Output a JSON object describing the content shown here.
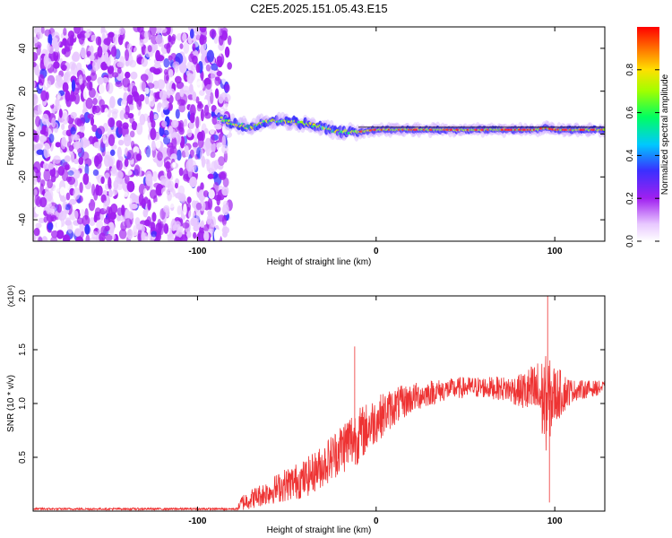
{
  "chart_data": [
    {
      "type": "heatmap",
      "title": "C2E5.2025.151.05.43.E15",
      "xlabel": "Height of straight line (km)",
      "ylabel": "Frequency (Hz)",
      "xlim": [
        -192,
        128
      ],
      "ylim": [
        -50,
        50
      ],
      "xticks": [
        -100,
        0,
        100
      ],
      "yticks": [
        -40,
        -20,
        0,
        20,
        40
      ],
      "colorbar": {
        "label": "Normalized spectral amplitude",
        "range": [
          0,
          1
        ],
        "ticks": [
          "0.0",
          "0.2",
          "0.4",
          "0.6",
          "0.8"
        ],
        "colormap": [
          "#ffffff",
          "#a020f0",
          "#3a30ff",
          "#00c8ff",
          "#00ff60",
          "#a0ff00",
          "#ffe000",
          "#ff7000",
          "#ff0000"
        ]
      },
      "regions": [
        {
          "name": "noise",
          "x": [
            -192,
            -82
          ],
          "amplitude": [
            0.05,
            0.35
          ]
        },
        {
          "name": "signal",
          "x": [
            -82,
            128
          ],
          "amplitude": [
            0.6,
            1.0
          ]
        }
      ],
      "signal_ridge": {
        "x": [
          -90,
          -80,
          -70,
          -60,
          -50,
          -40,
          -30,
          -20,
          -10,
          0,
          10,
          20,
          40,
          60,
          80,
          90,
          95,
          100,
          128
        ],
        "frequency": [
          8,
          5,
          3,
          6,
          6,
          5,
          3,
          1,
          1,
          2,
          2,
          2,
          2,
          2,
          2,
          2,
          3,
          2,
          2
        ]
      },
      "grid": false
    },
    {
      "type": "line",
      "xlabel": "Height of straight line (km)",
      "ylabel": "SNR (10 * v/v)",
      "yscale_label": "(x10⁴)",
      "xlim": [
        -192,
        128
      ],
      "ylim": [
        0,
        2.0
      ],
      "xticks": [
        -100,
        0,
        100
      ],
      "yticks": [
        "0.5",
        "1.0",
        "1.5",
        "2.0"
      ],
      "series": [
        {
          "color": "#ee3333",
          "envelope": {
            "x": [
              -192,
              -78,
              -75,
              -60,
              -50,
              -40,
              -30,
              -20,
              -15,
              -10,
              0,
              10,
              20,
              30,
              40,
              50,
              60,
              70,
              80,
              90,
              95,
              100,
              110,
              128
            ],
            "mean": [
              0.02,
              0.02,
              0.08,
              0.18,
              0.25,
              0.3,
              0.42,
              0.58,
              0.65,
              0.7,
              0.85,
              0.97,
              1.05,
              1.1,
              1.13,
              1.15,
              1.15,
              1.14,
              1.12,
              1.1,
              1.0,
              1.08,
              1.12,
              1.15
            ],
            "spread": [
              0.01,
              0.01,
              0.08,
              0.12,
              0.16,
              0.18,
              0.2,
              0.24,
              0.28,
              0.26,
              0.22,
              0.18,
              0.14,
              0.12,
              0.1,
              0.1,
              0.1,
              0.11,
              0.15,
              0.3,
              0.45,
              0.28,
              0.1,
              0.06
            ]
          },
          "peaks": [
            {
              "x": -12,
              "y": 1.53
            },
            {
              "x": 96,
              "y": 2.0
            },
            {
              "x": 97,
              "y": 0.08
            }
          ]
        }
      ],
      "grid": false
    }
  ]
}
